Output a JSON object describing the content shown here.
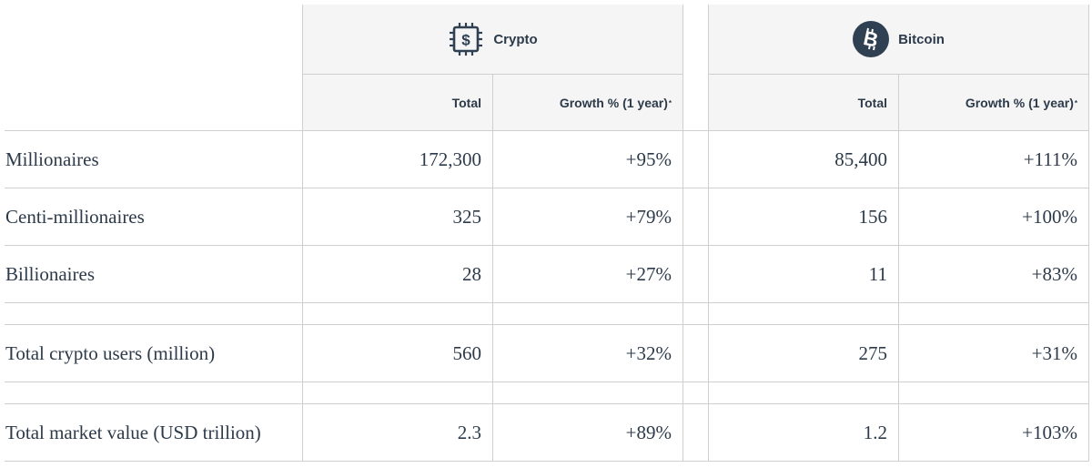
{
  "chart_data": {
    "type": "table",
    "groups": [
      {
        "name": "Crypto",
        "icon": "chip-dollar-icon"
      },
      {
        "name": "Bitcoin",
        "icon": "bitcoin-icon"
      }
    ],
    "columns": [
      "Total",
      "Growth % (1 year)",
      "Total",
      "Growth % (1 year)"
    ],
    "footnote_mark": "*",
    "rows": [
      {
        "label": "Millionaires",
        "values": [
          "172,300",
          "+95%",
          "85,400",
          "+111%"
        ]
      },
      {
        "label": "Centi-millionaires",
        "values": [
          "325",
          "+79%",
          "156",
          "+100%"
        ]
      },
      {
        "label": "Billionaires",
        "values": [
          "28",
          "+27%",
          "11",
          "+83%"
        ]
      },
      {
        "label": "Total crypto users (million)",
        "values": [
          "560",
          "+32%",
          "275",
          "+31%"
        ]
      },
      {
        "label": "Total market value (USD trillion)",
        "values": [
          "2.3",
          "+89%",
          "1.2",
          "+103%"
        ]
      }
    ],
    "colors": {
      "header_bg": "#f5f5f5",
      "text": "#2c3a4a",
      "grid": "#cfcfcf",
      "icon": "#2f4052"
    }
  }
}
